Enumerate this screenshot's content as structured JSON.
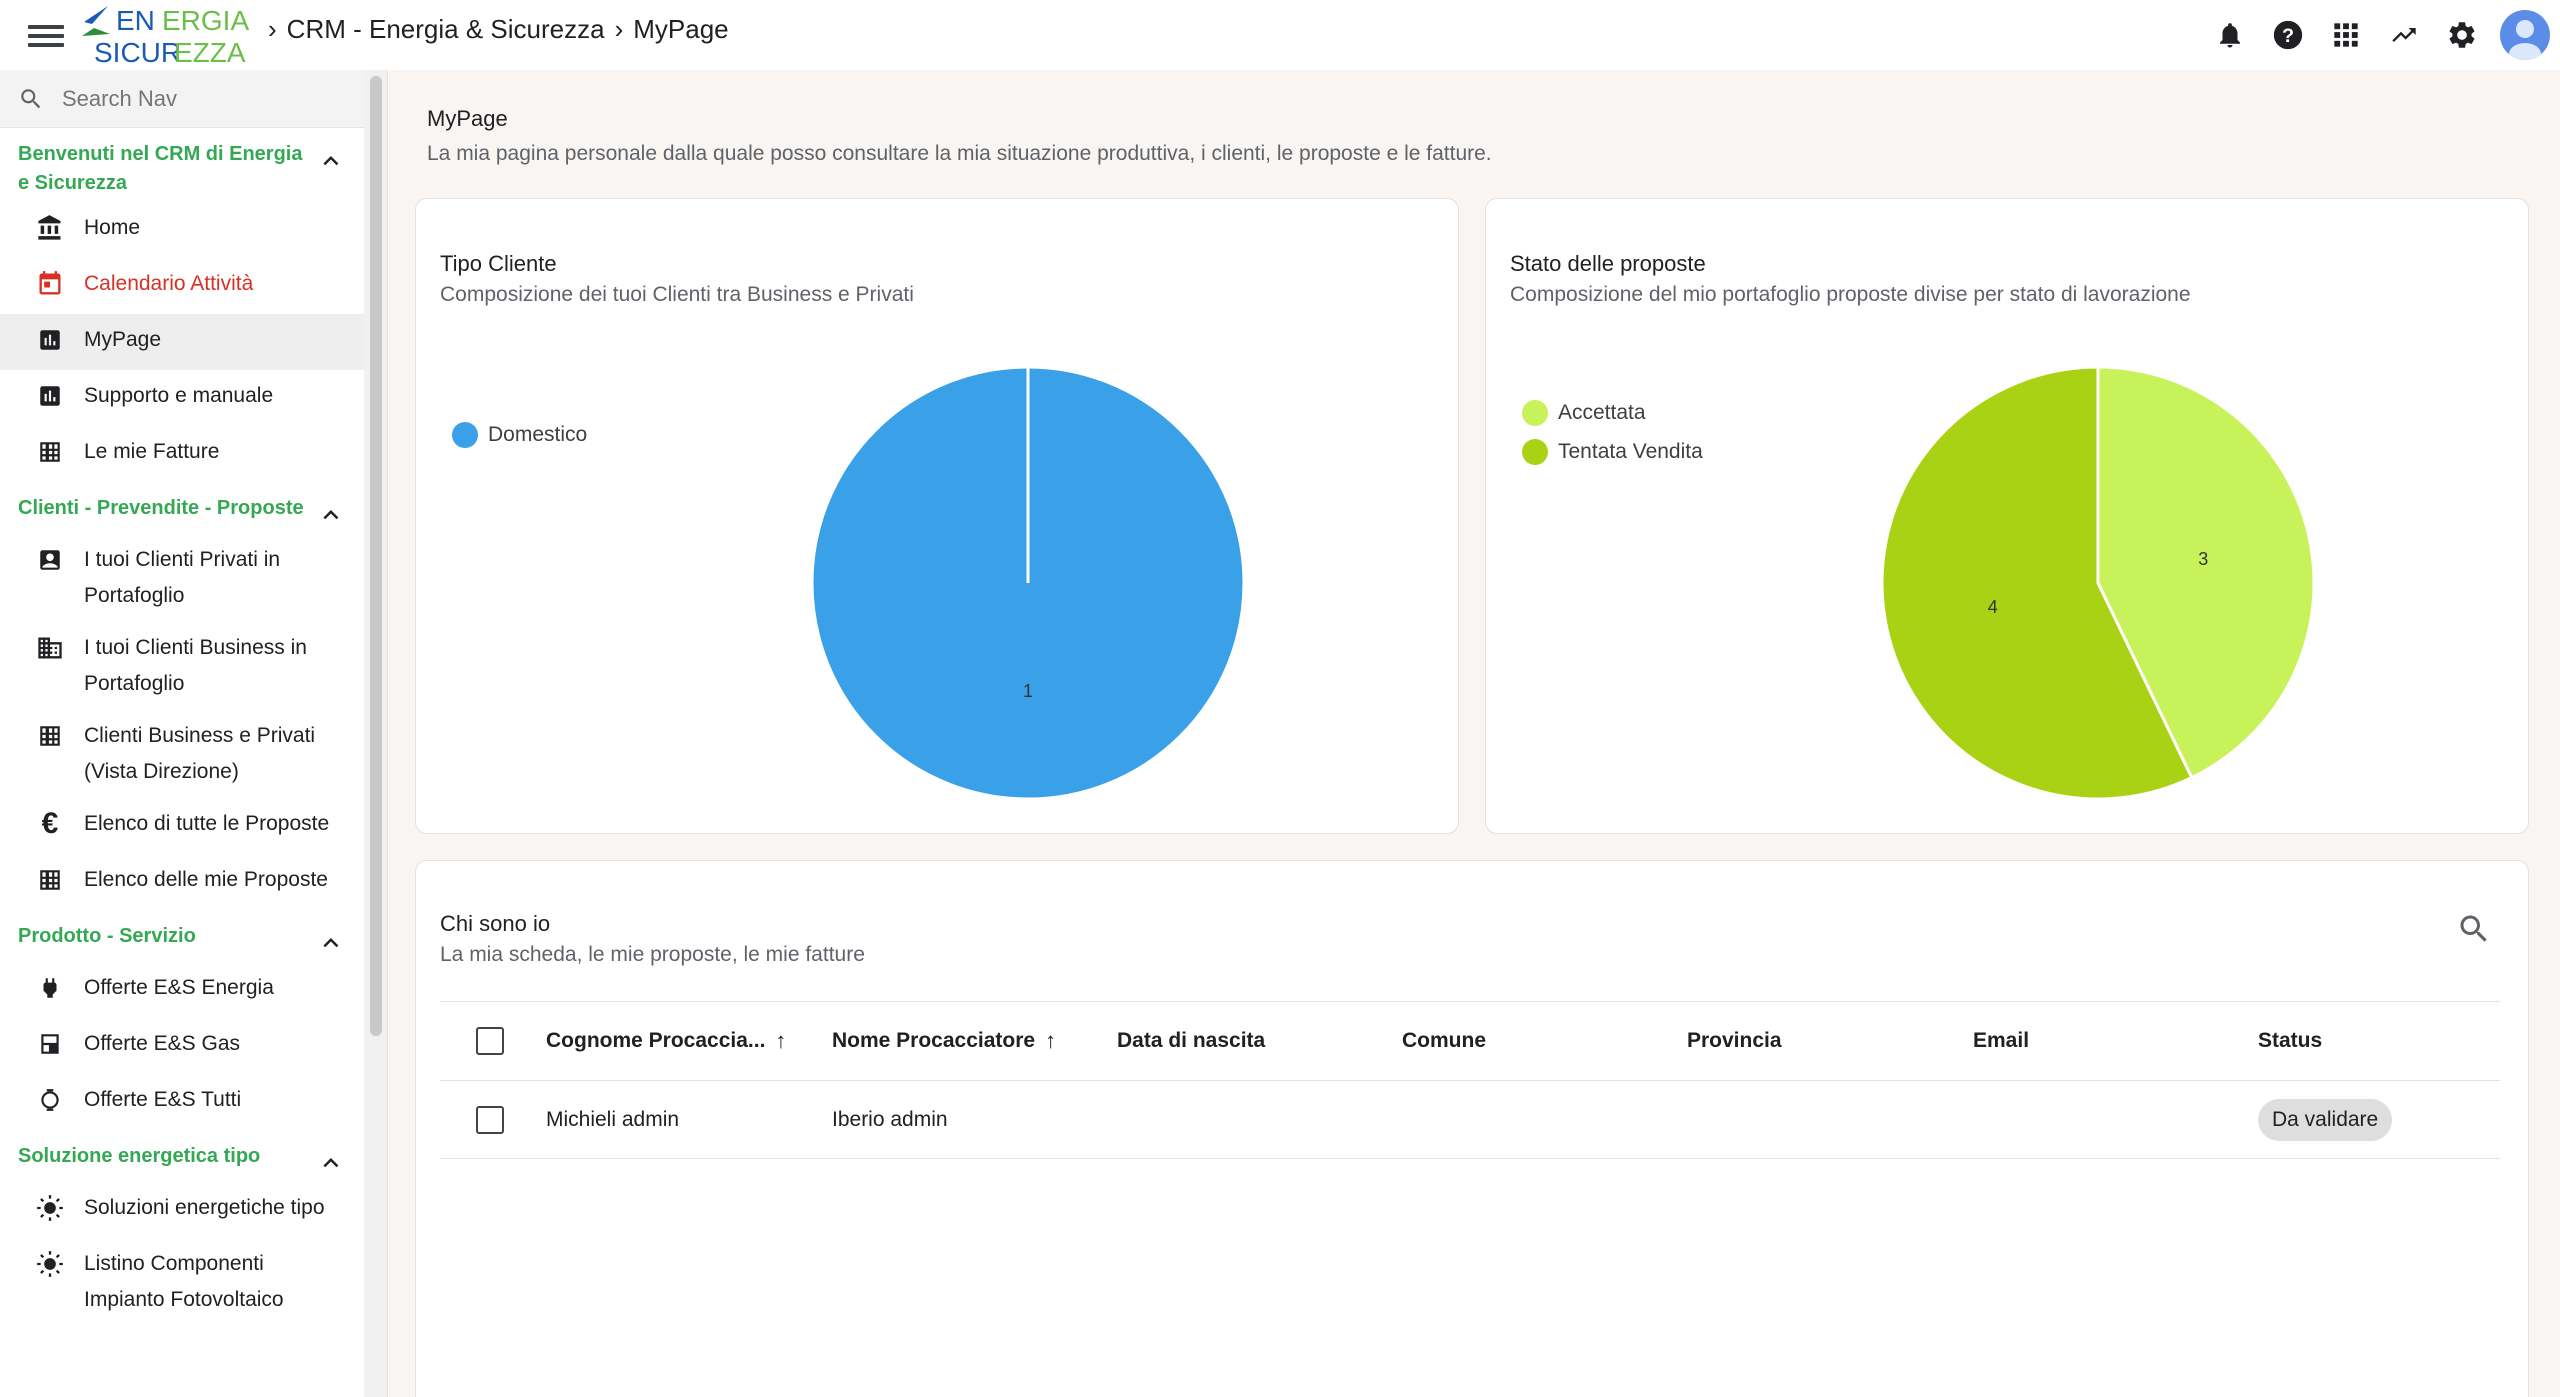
{
  "topbar": {
    "logo_text_1": "EN",
    "logo_text_2": "ERGIA",
    "logo_text_3": "SICUR",
    "logo_text_4": "EZZA",
    "breadcrumb_1": "CRM - Energia & Sicurezza",
    "breadcrumb_2": "MyPage"
  },
  "sidebar": {
    "search_placeholder": "Search Nav",
    "groups": [
      {
        "title": "Benvenuti nel CRM di Energia e Sicurezza"
      },
      {
        "title": "Clienti - Prevendite - Proposte"
      },
      {
        "title": "Prodotto - Servizio"
      },
      {
        "title": "Soluzione energetica tipo"
      }
    ],
    "items": [
      {
        "label": "Home"
      },
      {
        "label": "Calendario Attività"
      },
      {
        "label": "MyPage"
      },
      {
        "label": "Supporto e manuale"
      },
      {
        "label": "Le mie Fatture"
      },
      {
        "label": "I tuoi Clienti Privati in Portafoglio"
      },
      {
        "label": "I tuoi Clienti Business in Portafoglio"
      },
      {
        "label": "Clienti Business e Privati (Vista Direzione)"
      },
      {
        "label": "Elenco di tutte le Proposte"
      },
      {
        "label": "Elenco delle mie Proposte"
      },
      {
        "label": "Offerte E&S Energia"
      },
      {
        "label": "Offerte E&S Gas"
      },
      {
        "label": "Offerte E&S Tutti"
      },
      {
        "label": "Soluzioni energetiche tipo"
      },
      {
        "label": "Listino Componenti Impianto Fotovoltaico"
      }
    ]
  },
  "page": {
    "title": "MyPage",
    "subtitle": "La mia pagina personale dalla quale posso consultare la mia situazione produttiva, i clienti, le proposte e le fatture."
  },
  "card_tipo": {
    "title": "Tipo Cliente",
    "subtitle": "Composizione dei tuoi Clienti tra Business e Privati"
  },
  "card_stato": {
    "title": "Stato delle proposte",
    "subtitle": "Composizione del mio portafoglio proposte divise per stato di lavorazione"
  },
  "chart_data": [
    {
      "type": "pie",
      "title": "Tipo Cliente",
      "labels": [
        "Domestico"
      ],
      "values": [
        1
      ],
      "colors": [
        "#3aa0e8"
      ]
    },
    {
      "type": "pie",
      "title": "Stato delle proposte",
      "labels": [
        "Accettata",
        "Tentata Vendita"
      ],
      "values": [
        3,
        4
      ],
      "colors": [
        "#c8f25a",
        "#aad215"
      ]
    }
  ],
  "card_chi": {
    "title": "Chi sono io",
    "subtitle": "La mia scheda, le mie proposte, le mie fatture"
  },
  "table": {
    "headers": [
      "Cognome Procaccia...",
      "Nome Procacciatore",
      "Data di nascita",
      "Comune",
      "Provincia",
      "Email",
      "Status"
    ],
    "rows": [
      {
        "cognome": "Michieli admin",
        "nome": "Iberio admin",
        "data": "",
        "comune": "",
        "provincia": "",
        "email": "",
        "status": "Da validare"
      }
    ]
  },
  "colors": {
    "accent_green": "#34a853",
    "red_item": "#d93025",
    "pie_blue": "#3aa0e8",
    "pie_light_green": "#c8f25a",
    "pie_dark_green": "#aad215"
  }
}
